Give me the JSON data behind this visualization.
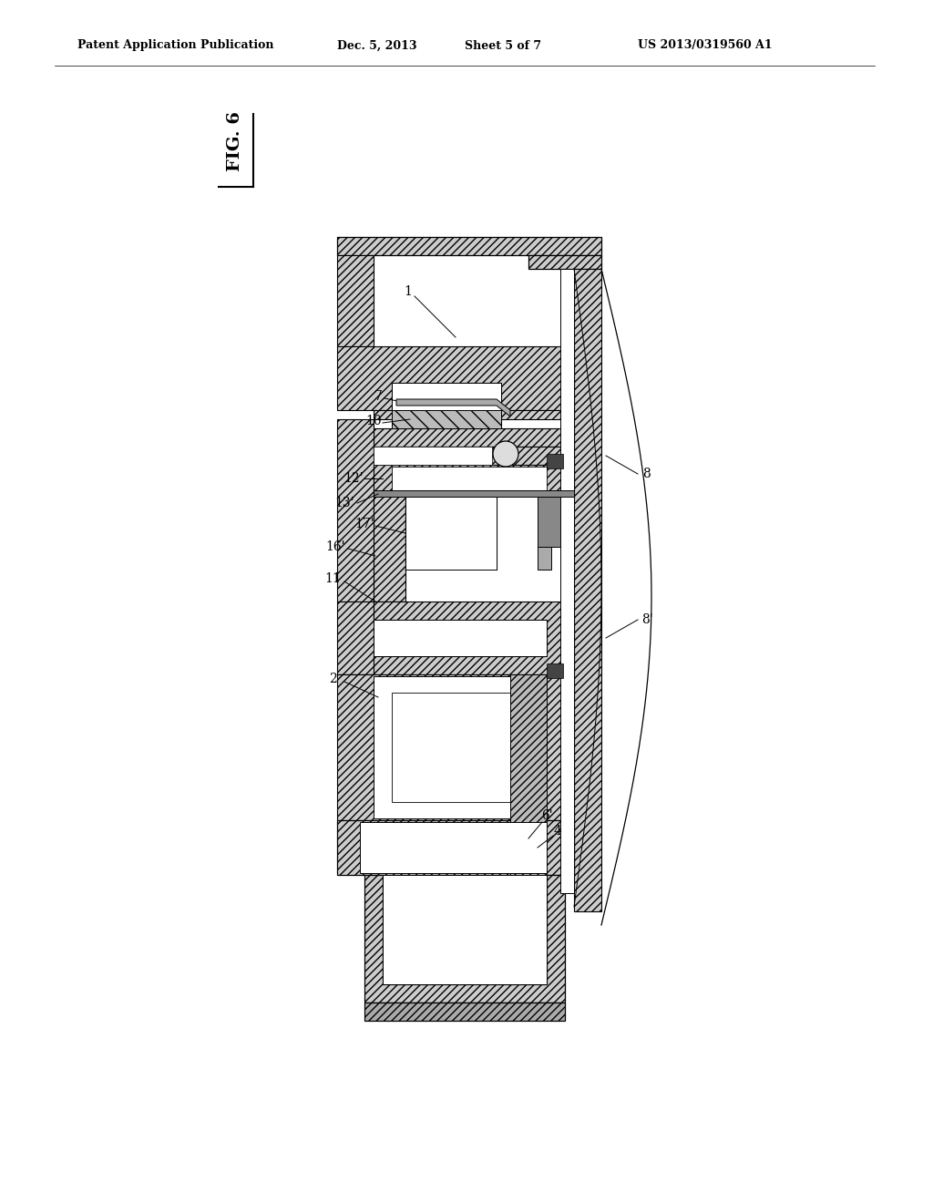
{
  "bg_color": "#ffffff",
  "line_color": "#000000",
  "header_text": "Patent Application Publication",
  "header_date": "Dec. 5, 2013",
  "header_sheet": "Sheet 5 of 7",
  "header_patent": "US 2013/0319560 A1",
  "fig_label": "FIG. 6",
  "hatch_fc": "#cccccc",
  "hatch_pattern": "////",
  "label_fontsize": 10,
  "header_fontsize": 9,
  "fig_label_fontsize": 14
}
